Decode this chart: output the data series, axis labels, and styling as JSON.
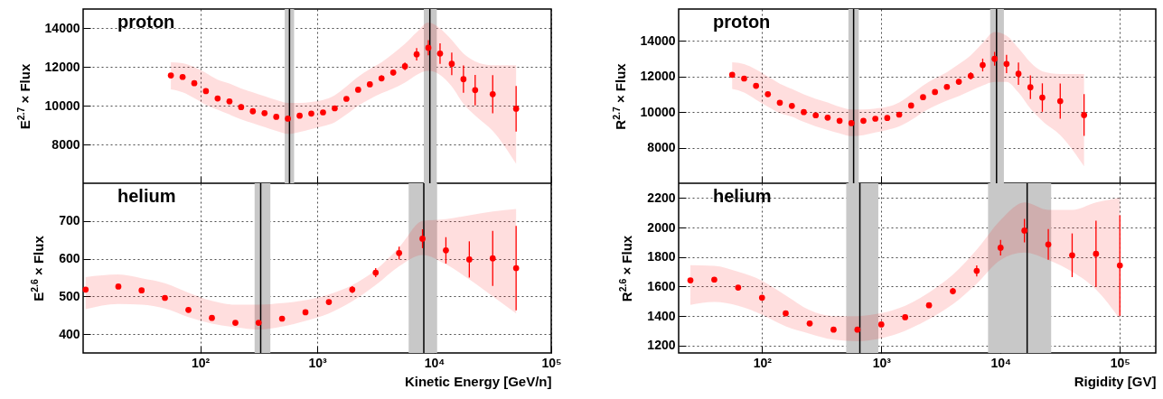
{
  "chart_data": [
    {
      "type": "scatter",
      "title": "proton",
      "ylabel": "E$^{2.7}$ × Flux",
      "log": "x",
      "grid": true,
      "marker": "circle",
      "tick_labels": "y",
      "xlim": [
        10,
        100000
      ],
      "xticks": [
        100,
        1000,
        10000,
        100000
      ],
      "ylim": [
        6000,
        15000
      ],
      "yticks": [
        8000,
        10000,
        12000,
        14000
      ],
      "x": [
        56.2,
        70.8,
        89.1,
        112,
        141,
        178,
        224,
        282,
        355,
        447,
        562,
        708,
        891,
        1122,
        1413,
        1778,
        2239,
        2818,
        3548,
        4467,
        5623,
        7079,
        8913,
        11220,
        14125,
        17783,
        22387,
        31623,
        50119
      ],
      "series": [
        {
          "color": "#ff0000",
          "values": [
            11570,
            11490,
            11170,
            10760,
            10380,
            10230,
            9930,
            9720,
            9620,
            9430,
            9340,
            9490,
            9600,
            9660,
            9870,
            10360,
            10830,
            11110,
            11420,
            11720,
            12040,
            12660,
            13000,
            12700,
            12170,
            11380,
            10810,
            10600,
            9850
          ],
          "errors": [
            null,
            null,
            null,
            null,
            100,
            100,
            150,
            150,
            null,
            null,
            null,
            null,
            null,
            null,
            null,
            null,
            120,
            120,
            150,
            150,
            200,
            320,
            390,
            530,
            580,
            700,
            790,
            990,
            1180
          ],
          "lower": [
            10850,
            10700,
            10400,
            10050,
            9800,
            9550,
            9300,
            9100,
            8900,
            8700,
            8550,
            8650,
            8800,
            8950,
            9150,
            9550,
            10000,
            10350,
            10650,
            10900,
            11200,
            11600,
            11800,
            11600,
            11000,
            10100,
            9500,
            8700,
            7000
          ],
          "upper": [
            12250,
            12200,
            12000,
            11700,
            11350,
            11150,
            10900,
            10700,
            10500,
            10300,
            10150,
            10150,
            10200,
            10300,
            10550,
            11000,
            11500,
            11900,
            12250,
            12700,
            13200,
            13800,
            14300,
            14000,
            13400,
            12700,
            12300,
            12100,
            12100
          ]
        }
      ],
      "ref_lines": [
        {
          "axis": "x",
          "value": 580,
          "color": "#000000"
        },
        {
          "axis": "x",
          "value": 9180,
          "color": "#000000"
        }
      ],
      "bands": [
        {
          "axis": "x",
          "from": 528,
          "to": 635,
          "color": "#c8c8c8"
        },
        {
          "axis": "x",
          "from": 8150,
          "to": 10520,
          "color": "#c8c8c8"
        }
      ]
    },
    {
      "type": "scatter",
      "title": "proton",
      "ylabel": "R$^{2.7}$ × Flux",
      "log": "x",
      "grid": true,
      "marker": "circle",
      "tick_labels": "y",
      "xlim": [
        20,
        200000
      ],
      "xticks": [
        100,
        1000,
        10000,
        100000
      ],
      "ylim": [
        6000,
        15800
      ],
      "yticks": [
        8000,
        10000,
        12000,
        14000
      ],
      "x": [
        56.2,
        70.8,
        89.1,
        112,
        141,
        178,
        224,
        282,
        355,
        447,
        562,
        708,
        891,
        1122,
        1413,
        1778,
        2239,
        2818,
        3548,
        4467,
        5623,
        7079,
        8913,
        11220,
        14125,
        17783,
        22387,
        31623,
        50119
      ],
      "series": [
        {
          "color": "#ff0000",
          "values": [
            12100,
            11890,
            11480,
            11010,
            10530,
            10350,
            10000,
            9820,
            9690,
            9510,
            9380,
            9510,
            9630,
            9670,
            9860,
            10370,
            10840,
            11130,
            11420,
            11710,
            12040,
            12650,
            13000,
            12710,
            12160,
            11400,
            10820,
            10620,
            9840
          ],
          "errors": [
            null,
            null,
            null,
            null,
            120,
            120,
            140,
            150,
            null,
            null,
            null,
            null,
            null,
            null,
            null,
            null,
            100,
            120,
            140,
            140,
            200,
            360,
            390,
            515,
            630,
            670,
            800,
            990,
            1180
          ],
          "lower": [
            11300,
            11100,
            10700,
            10300,
            9950,
            9750,
            9450,
            9200,
            9000,
            8800,
            8650,
            8700,
            8850,
            9000,
            9200,
            9550,
            10000,
            10350,
            10650,
            10900,
            11200,
            11500,
            11700,
            11700,
            11100,
            10200,
            9500,
            8700,
            6950
          ],
          "upper": [
            12800,
            12700,
            12400,
            12000,
            11600,
            11300,
            11000,
            10750,
            10550,
            10300,
            10150,
            10150,
            10200,
            10300,
            10550,
            11000,
            11500,
            11900,
            12250,
            12700,
            13200,
            13900,
            14500,
            14300,
            13600,
            12800,
            12300,
            12150,
            12150
          ]
        }
      ],
      "ref_lines": [
        {
          "axis": "x",
          "value": 586,
          "color": "#000000"
        },
        {
          "axis": "x",
          "value": 9250,
          "color": "#000000"
        }
      ],
      "bands": [
        {
          "axis": "x",
          "from": 530,
          "to": 647,
          "color": "#c8c8c8"
        },
        {
          "axis": "x",
          "from": 8180,
          "to": 10660,
          "color": "#c8c8c8"
        }
      ]
    },
    {
      "type": "scatter",
      "title": "helium",
      "xlabel": "Kinetic Energy [GeV/n]",
      "ylabel": "E$^{2.6}$ × Flux",
      "log": "x",
      "grid": true,
      "marker": "circle",
      "xlim": [
        10,
        100000
      ],
      "xticks": [
        {
          "value": 100,
          "label": "10²"
        },
        {
          "value": 1000,
          "label": "10³"
        },
        {
          "value": 10000,
          "label": "10⁴"
        },
        {
          "value": 100000,
          "label": "10⁵"
        }
      ],
      "ylim": [
        350,
        800
      ],
      "yticks": [
        400,
        500,
        600,
        700
      ],
      "x": [
        10.5,
        20,
        31.6,
        50,
        79.4,
        126,
        200,
        316,
        501,
        794,
        1259,
        1995,
        3162,
        5012,
        7943,
        12589,
        19953,
        31623,
        50119
      ],
      "series": [
        {
          "color": "#ff0000",
          "values": [
            518,
            526,
            516,
            496,
            464,
            443,
            430,
            430,
            441,
            458,
            485,
            518,
            563,
            615,
            653,
            622,
            598,
            601,
            575
          ],
          "errors": [
            null,
            null,
            null,
            null,
            null,
            null,
            null,
            null,
            null,
            null,
            null,
            9,
            12,
            17,
            25,
            35,
            48,
            73,
            112
          ],
          "lower": [
            466,
            480,
            478,
            468,
            445,
            428,
            418,
            412,
            420,
            435,
            455,
            487,
            530,
            580,
            610,
            585,
            545,
            500,
            455
          ],
          "upper": [
            551,
            558,
            548,
            535,
            510,
            488,
            478,
            478,
            482,
            490,
            505,
            530,
            570,
            630,
            700,
            705,
            715,
            725,
            732
          ]
        }
      ],
      "ref_lines": [
        {
          "axis": "x",
          "value": 329,
          "color": "#000000"
        },
        {
          "axis": "x",
          "value": 8150,
          "color": "#000000"
        }
      ],
      "bands": [
        {
          "axis": "x",
          "from": 292,
          "to": 398,
          "color": "#c8c8c8"
        },
        {
          "axis": "x",
          "from": 6050,
          "to": 10590,
          "color": "#c8c8c8"
        }
      ]
    },
    {
      "type": "scatter",
      "title": "helium",
      "xlabel": "Rigidity [GV]",
      "ylabel": "R$^{2.6}$ × Flux",
      "log": "x",
      "grid": true,
      "marker": "circle",
      "xlim": [
        20,
        200000
      ],
      "xticks": [
        {
          "value": 100,
          "label": "10²"
        },
        {
          "value": 1000,
          "label": "10³"
        },
        {
          "value": 10000,
          "label": "10⁴"
        },
        {
          "value": 100000,
          "label": "10⁵"
        }
      ],
      "ylim": [
        1150,
        2300
      ],
      "yticks": [
        1200,
        1400,
        1600,
        1800,
        2000,
        2200
      ],
      "x": [
        25.1,
        39.8,
        63.1,
        100,
        158,
        251,
        398,
        631,
        1000,
        1585,
        2512,
        3981,
        6310,
        10000,
        15849,
        25119,
        39811,
        63096,
        100000
      ],
      "series": [
        {
          "color": "#ff0000",
          "values": [
            1642,
            1647,
            1593,
            1524,
            1419,
            1350,
            1308,
            1308,
            1343,
            1392,
            1473,
            1569,
            1706,
            1863,
            1979,
            1885,
            1812,
            1822,
            1743
          ],
          "errors": [
            12,
            null,
            null,
            null,
            null,
            null,
            null,
            null,
            null,
            null,
            15,
            22,
            37,
            53,
            80,
            104,
            148,
            224,
            340
          ],
          "lower": [
            1475,
            1495,
            1470,
            1410,
            1330,
            1280,
            1240,
            1230,
            1250,
            1300,
            1380,
            1480,
            1620,
            1780,
            1830,
            1780,
            1700,
            1580,
            1380
          ],
          "upper": [
            1745,
            1740,
            1700,
            1640,
            1540,
            1440,
            1400,
            1400,
            1420,
            1470,
            1560,
            1680,
            1850,
            2050,
            2170,
            2120,
            2120,
            2170,
            2200
          ]
        }
      ],
      "ref_lines": [
        {
          "axis": "x",
          "value": 661,
          "color": "#000000"
        },
        {
          "axis": "x",
          "value": 16700,
          "color": "#000000"
        }
      ],
      "bands": [
        {
          "axis": "x",
          "from": 508,
          "to": 944,
          "color": "#c8c8c8"
        },
        {
          "axis": "x",
          "from": 7850,
          "to": 26550,
          "color": "#c8c8c8"
        }
      ]
    }
  ]
}
